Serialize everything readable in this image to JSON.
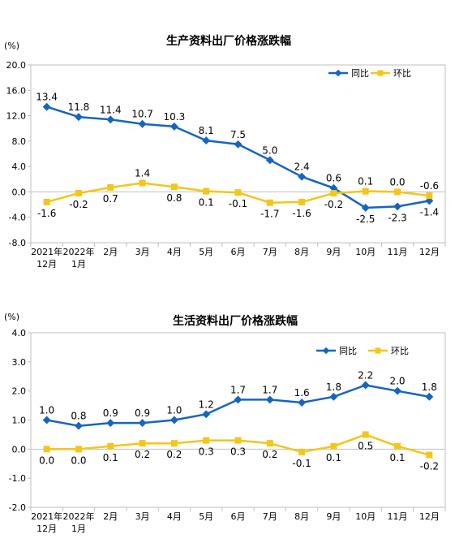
{
  "chart_data": [
    {
      "type": "line",
      "title": "生产资料出厂价格涨跌幅",
      "ylabel": "(%)",
      "ylim": [
        -8.0,
        20.0
      ],
      "yticks": [
        "20.0",
        "16.0",
        "12.0",
        "8.0",
        "4.0",
        "0.0",
        "-4.0",
        "-8.0"
      ],
      "categories": [
        [
          "2021年",
          "12月"
        ],
        [
          "2022年",
          "1月"
        ],
        [
          "2月"
        ],
        [
          "3月"
        ],
        [
          "4月"
        ],
        [
          "5月"
        ],
        [
          "6月"
        ],
        [
          "7月"
        ],
        [
          "8月"
        ],
        [
          "9月"
        ],
        [
          "10月"
        ],
        [
          "11月"
        ],
        [
          "12月"
        ]
      ],
      "legend_position": "top-right",
      "series": [
        {
          "name": "同比",
          "color": "#1565c0",
          "values": [
            13.4,
            11.8,
            11.4,
            10.7,
            10.3,
            8.1,
            7.5,
            5.0,
            2.4,
            0.6,
            -2.5,
            -2.3,
            -1.4
          ],
          "labels": [
            "13.4",
            "11.8",
            "11.4",
            "10.7",
            "10.3",
            "8.1",
            "7.5",
            "5.0",
            "2.4",
            "0.6",
            "-2.5",
            "-2.3",
            "-1.4"
          ]
        },
        {
          "name": "环比",
          "color": "#f5c518",
          "values": [
            -1.6,
            -0.2,
            0.7,
            1.4,
            0.8,
            0.1,
            -0.1,
            -1.7,
            -1.6,
            -0.2,
            0.1,
            0.0,
            -0.6
          ],
          "labels": [
            "-1.6",
            "-0.2",
            "0.7",
            "1.4",
            "0.8",
            "0.1",
            "-0.1",
            "-1.7",
            "-1.6",
            "-0.2",
            "0.1",
            "0.0",
            "-0.6"
          ]
        }
      ]
    },
    {
      "type": "line",
      "title": "生活资料出厂价格涨跌幅",
      "ylabel": "(%)",
      "ylim": [
        -2.0,
        4.0
      ],
      "yticks": [
        "4.0",
        "3.0",
        "2.0",
        "1.0",
        "0.0",
        "-1.0",
        "-2.0"
      ],
      "categories": [
        [
          "2021年",
          "12月"
        ],
        [
          "2022年",
          "1月"
        ],
        [
          "2月"
        ],
        [
          "3月"
        ],
        [
          "4月"
        ],
        [
          "5月"
        ],
        [
          "6月"
        ],
        [
          "7月"
        ],
        [
          "8月"
        ],
        [
          "9月"
        ],
        [
          "10月"
        ],
        [
          "11月"
        ],
        [
          "12月"
        ]
      ],
      "legend_position": "top-right",
      "series": [
        {
          "name": "同比",
          "color": "#1565c0",
          "values": [
            1.0,
            0.8,
            0.9,
            0.9,
            1.0,
            1.2,
            1.7,
            1.7,
            1.6,
            1.8,
            2.2,
            2.0,
            1.8
          ],
          "labels": [
            "1.0",
            "0.8",
            "0.9",
            "0.9",
            "1.0",
            "1.2",
            "1.7",
            "1.7",
            "1.6",
            "1.8",
            "2.2",
            "2.0",
            "1.8"
          ]
        },
        {
          "name": "环比",
          "color": "#f5c518",
          "values": [
            0.0,
            0.0,
            0.1,
            0.2,
            0.2,
            0.3,
            0.3,
            0.2,
            -0.1,
            0.1,
            0.5,
            0.1,
            -0.2
          ],
          "labels": [
            "0.0",
            "0.0",
            "0.1",
            "0.2",
            "0.2",
            "0.3",
            "0.3",
            "0.2",
            "-0.1",
            "0.1",
            "0.5",
            "0.1",
            "-0.2"
          ]
        }
      ]
    }
  ]
}
